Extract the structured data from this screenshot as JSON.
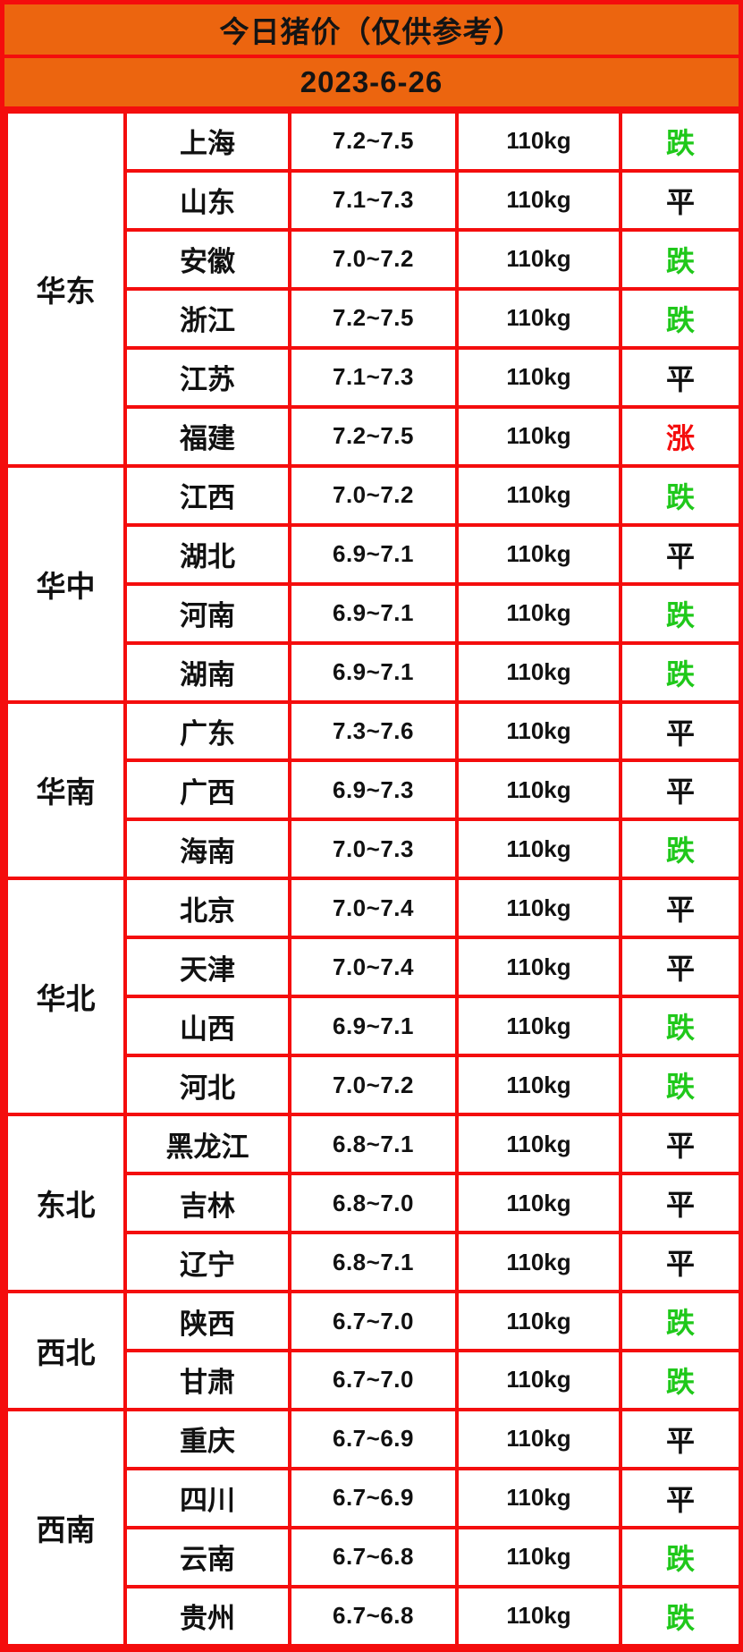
{
  "header": {
    "title": "今日猪价（仅供参考）",
    "date": "2023-6-26"
  },
  "colors": {
    "header_orange": "#ec650f",
    "border_red": "#f40d0d",
    "trend_down_green": "#1fc81a",
    "trend_up_red": "#f40d0d",
    "trend_flat_black": "#111111"
  },
  "chart_data": {
    "type": "table",
    "title": "今日猪价（仅供参考）",
    "date": "2023-6-26",
    "weight_standard": "110kg",
    "trend_labels": {
      "down": "跌",
      "flat": "平",
      "up": "涨"
    },
    "regions": [
      {
        "name": "华东",
        "rows": [
          {
            "province": "上海",
            "price": "7.2~7.5",
            "weight": "110kg",
            "trend": "跌",
            "direction": "down"
          },
          {
            "province": "山东",
            "price": "7.1~7.3",
            "weight": "110kg",
            "trend": "平",
            "direction": "flat"
          },
          {
            "province": "安徽",
            "price": "7.0~7.2",
            "weight": "110kg",
            "trend": "跌",
            "direction": "down"
          },
          {
            "province": "浙江",
            "price": "7.2~7.5",
            "weight": "110kg",
            "trend": "跌",
            "direction": "down"
          },
          {
            "province": "江苏",
            "price": "7.1~7.3",
            "weight": "110kg",
            "trend": "平",
            "direction": "flat"
          },
          {
            "province": "福建",
            "price": "7.2~7.5",
            "weight": "110kg",
            "trend": "涨",
            "direction": "up"
          }
        ]
      },
      {
        "name": "华中",
        "rows": [
          {
            "province": "江西",
            "price": "7.0~7.2",
            "weight": "110kg",
            "trend": "跌",
            "direction": "down"
          },
          {
            "province": "湖北",
            "price": "6.9~7.1",
            "weight": "110kg",
            "trend": "平",
            "direction": "flat"
          },
          {
            "province": "河南",
            "price": "6.9~7.1",
            "weight": "110kg",
            "trend": "跌",
            "direction": "down"
          },
          {
            "province": "湖南",
            "price": "6.9~7.1",
            "weight": "110kg",
            "trend": "跌",
            "direction": "down"
          }
        ]
      },
      {
        "name": "华南",
        "rows": [
          {
            "province": "广东",
            "price": "7.3~7.6",
            "weight": "110kg",
            "trend": "平",
            "direction": "flat"
          },
          {
            "province": "广西",
            "price": "6.9~7.3",
            "weight": "110kg",
            "trend": "平",
            "direction": "flat"
          },
          {
            "province": "海南",
            "price": "7.0~7.3",
            "weight": "110kg",
            "trend": "跌",
            "direction": "down"
          }
        ]
      },
      {
        "name": "华北",
        "rows": [
          {
            "province": "北京",
            "price": "7.0~7.4",
            "weight": "110kg",
            "trend": "平",
            "direction": "flat"
          },
          {
            "province": "天津",
            "price": "7.0~7.4",
            "weight": "110kg",
            "trend": "平",
            "direction": "flat"
          },
          {
            "province": "山西",
            "price": "6.9~7.1",
            "weight": "110kg",
            "trend": "跌",
            "direction": "down"
          },
          {
            "province": "河北",
            "price": "7.0~7.2",
            "weight": "110kg",
            "trend": "跌",
            "direction": "down"
          }
        ]
      },
      {
        "name": "东北",
        "rows": [
          {
            "province": "黑龙江",
            "price": "6.8~7.1",
            "weight": "110kg",
            "trend": "平",
            "direction": "flat"
          },
          {
            "province": "吉林",
            "price": "6.8~7.0",
            "weight": "110kg",
            "trend": "平",
            "direction": "flat"
          },
          {
            "province": "辽宁",
            "price": "6.8~7.1",
            "weight": "110kg",
            "trend": "平",
            "direction": "flat"
          }
        ]
      },
      {
        "name": "西北",
        "rows": [
          {
            "province": "陕西",
            "price": "6.7~7.0",
            "weight": "110kg",
            "trend": "跌",
            "direction": "down"
          },
          {
            "province": "甘肃",
            "price": "6.7~7.0",
            "weight": "110kg",
            "trend": "跌",
            "direction": "down"
          }
        ]
      },
      {
        "name": "西南",
        "rows": [
          {
            "province": "重庆",
            "price": "6.7~6.9",
            "weight": "110kg",
            "trend": "平",
            "direction": "flat"
          },
          {
            "province": "四川",
            "price": "6.7~6.9",
            "weight": "110kg",
            "trend": "平",
            "direction": "flat"
          },
          {
            "province": "云南",
            "price": "6.7~6.8",
            "weight": "110kg",
            "trend": "跌",
            "direction": "down"
          },
          {
            "province": "贵州",
            "price": "6.7~6.8",
            "weight": "110kg",
            "trend": "跌",
            "direction": "down"
          }
        ]
      }
    ]
  }
}
